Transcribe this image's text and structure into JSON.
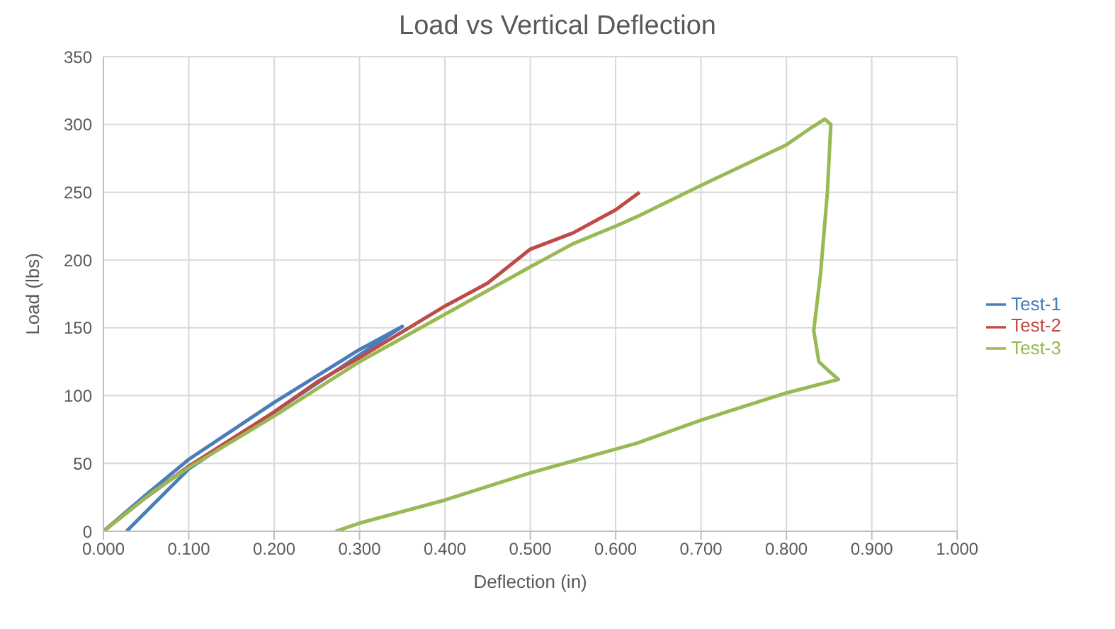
{
  "chart_data": {
    "type": "line",
    "title": "Load vs Vertical Deflection",
    "xlabel": "Deflection (in)",
    "ylabel": "Load (lbs)",
    "xlim": [
      0,
      1
    ],
    "xticks": [
      {
        "value": 0,
        "label": "0.000"
      },
      {
        "value": 0.1,
        "label": "0.100"
      },
      {
        "value": 0.2,
        "label": "0.200"
      },
      {
        "value": 0.3,
        "label": "0.300"
      },
      {
        "value": 0.4,
        "label": "0.400"
      },
      {
        "value": 0.5,
        "label": "0.500"
      },
      {
        "value": 0.6,
        "label": "0.600"
      },
      {
        "value": 0.7,
        "label": "0.700"
      },
      {
        "value": 0.8,
        "label": "0.800"
      },
      {
        "value": 0.9,
        "label": "0.900"
      },
      {
        "value": 1,
        "label": "1.000"
      }
    ],
    "ylim": [
      0,
      350
    ],
    "yticks": [
      0,
      50,
      100,
      150,
      200,
      250,
      300,
      350
    ],
    "grid": true,
    "legend": "right",
    "marker": "none",
    "line_style": "solid",
    "series": [
      {
        "name": "Test-1",
        "color": "#4a7ebb",
        "x": [
          0,
          0.05,
          0.1,
          0.2,
          0.3,
          0.35,
          0.2,
          0.1,
          0.027
        ],
        "values": [
          0,
          27,
          53,
          95,
          134,
          151,
          88,
          46,
          0
        ]
      },
      {
        "name": "Test-2",
        "color": "#be4b48",
        "x": [
          0,
          0.05,
          0.1,
          0.2,
          0.25,
          0.3,
          0.4,
          0.45,
          0.5,
          0.55,
          0.6,
          0.628
        ],
        "values": [
          0,
          25,
          48,
          88,
          110,
          128,
          166,
          183,
          208,
          220,
          237,
          250
        ]
      },
      {
        "name": "Test-3",
        "color": "#98b954",
        "x": [
          0,
          0.06,
          0.1,
          0.2,
          0.3,
          0.4,
          0.5,
          0.55,
          0.6,
          0.625,
          0.7,
          0.75,
          0.8,
          0.83,
          0.845,
          0.852,
          0.848,
          0.84,
          0.832,
          0.838,
          0.85,
          0.861,
          0.8,
          0.7,
          0.625,
          0.5,
          0.4,
          0.3,
          0.272
        ],
        "values": [
          0,
          30,
          47,
          85,
          125,
          160,
          195,
          212,
          225,
          232,
          255,
          270,
          285,
          298,
          304,
          300,
          250,
          190,
          148,
          125,
          118,
          112,
          102,
          82,
          65,
          43,
          23,
          6,
          0
        ]
      }
    ]
  }
}
